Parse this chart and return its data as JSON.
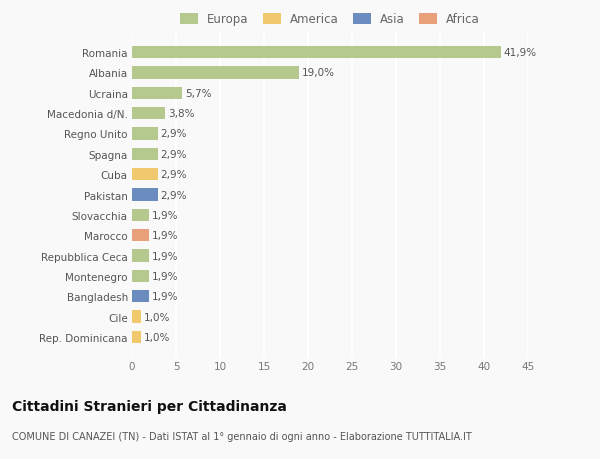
{
  "categories": [
    "Romania",
    "Albania",
    "Ucraina",
    "Macedonia d/N.",
    "Regno Unito",
    "Spagna",
    "Cuba",
    "Pakistan",
    "Slovacchia",
    "Marocco",
    "Repubblica Ceca",
    "Montenegro",
    "Bangladesh",
    "Cile",
    "Rep. Dominicana"
  ],
  "values": [
    41.9,
    19.0,
    5.7,
    3.8,
    2.9,
    2.9,
    2.9,
    2.9,
    1.9,
    1.9,
    1.9,
    1.9,
    1.9,
    1.0,
    1.0
  ],
  "bar_colors": [
    "#b5c98e",
    "#b5c98e",
    "#b5c98e",
    "#b5c98e",
    "#b5c98e",
    "#b5c98e",
    "#f0c96e",
    "#6b8cbf",
    "#b5c98e",
    "#e8a07a",
    "#b5c98e",
    "#b5c98e",
    "#6b8cbf",
    "#f0c96e",
    "#f0c96e"
  ],
  "labels": [
    "41,9%",
    "19,0%",
    "5,7%",
    "3,8%",
    "2,9%",
    "2,9%",
    "2,9%",
    "2,9%",
    "1,9%",
    "1,9%",
    "1,9%",
    "1,9%",
    "1,9%",
    "1,0%",
    "1,0%"
  ],
  "legend_labels": [
    "Europa",
    "America",
    "Asia",
    "Africa"
  ],
  "legend_colors": [
    "#b5c98e",
    "#f0c96e",
    "#6b8cbf",
    "#e8a07a"
  ],
  "xlim": [
    0,
    45
  ],
  "xticks": [
    0,
    5,
    10,
    15,
    20,
    25,
    30,
    35,
    40,
    45
  ],
  "title": "Cittadini Stranieri per Cittadinanza",
  "subtitle": "COMUNE DI CANAZEI (TN) - Dati ISTAT al 1° gennaio di ogni anno - Elaborazione TUTTITALIA.IT",
  "background_color": "#f9f9f9",
  "grid_color": "#ffffff",
  "bar_height": 0.6,
  "label_fontsize": 7.5,
  "tick_fontsize": 7.5,
  "title_fontsize": 10,
  "subtitle_fontsize": 7.0,
  "legend_fontsize": 8.5
}
